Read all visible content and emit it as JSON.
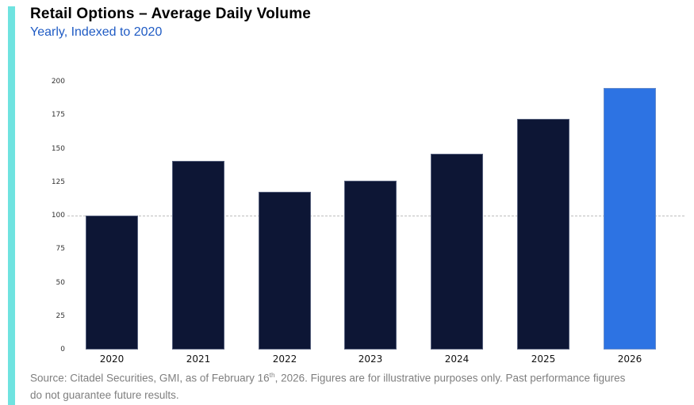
{
  "accent": {
    "color": "#6FE3E0"
  },
  "header": {
    "title": "Retail Options – Average Daily Volume",
    "subtitle": "Yearly, Indexed to 2020",
    "title_color": "#000000",
    "subtitle_color": "#1F5BC4"
  },
  "chart_data": {
    "type": "bar",
    "title": "Retail Options – Average Daily Volume",
    "subtitle": "Yearly, Indexed to 2020",
    "categories": [
      "2020",
      "2021",
      "2022",
      "2023",
      "2024",
      "2025",
      "2026"
    ],
    "values": [
      100,
      141,
      118,
      126,
      146,
      172,
      195
    ],
    "bar_colors": [
      "#0D1635",
      "#0D1635",
      "#0D1635",
      "#0D1635",
      "#0D1635",
      "#0D1635",
      "#2D73E3"
    ],
    "highlight_category": "2026",
    "xlabel": "",
    "ylabel": "",
    "ylim": [
      0,
      200
    ],
    "yticks": [
      0,
      25,
      50,
      75,
      100,
      125,
      150,
      175,
      200
    ],
    "reference_line": {
      "value": 100,
      "style": "dashed",
      "color": "#BDBDBD"
    },
    "grid": false,
    "legend": false
  },
  "footer": {
    "line1_prefix": "Source: Citadel Securities, GMI, as of February 16",
    "line1_sup": "th",
    "line1_suffix": ", 2026. Figures are for illustrative purposes only. Past performance figures",
    "line2": "do not guarantee future results.",
    "color": "#7F7F7F"
  }
}
